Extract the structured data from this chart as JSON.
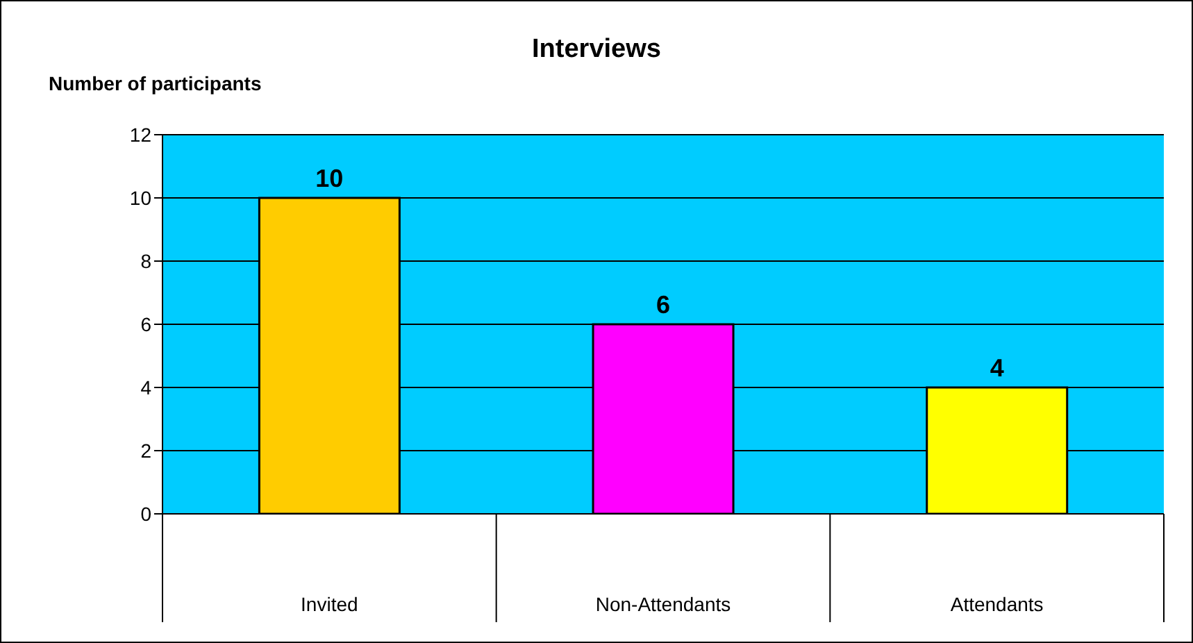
{
  "chart_data": {
    "type": "bar",
    "title": "Interviews",
    "ylabel": "Number of participants",
    "categories": [
      "Invited",
      "Non-Attendants",
      "Attendants"
    ],
    "values": [
      10,
      6,
      4
    ],
    "colors": [
      "#ffcc00",
      "#ff00ff",
      "#ffff00"
    ],
    "ylim": [
      0,
      12
    ],
    "yticks": [
      0,
      2,
      4,
      6,
      8,
      10,
      12
    ],
    "grid": "y",
    "data_labels": true
  }
}
